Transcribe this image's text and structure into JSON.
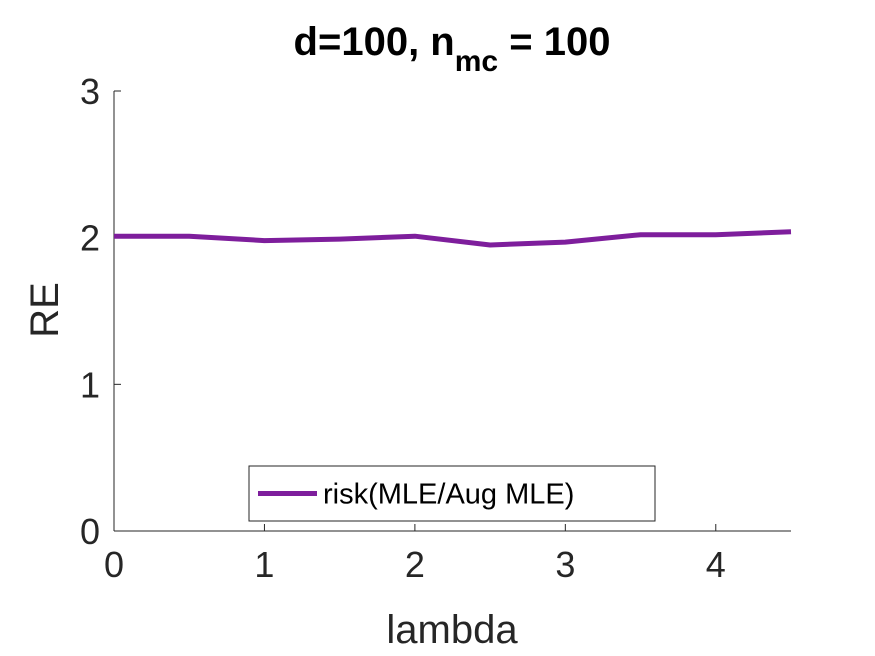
{
  "chart_data": {
    "type": "line",
    "title": {
      "prefix": "d=100, n",
      "subscript": "mc",
      "suffix": " = 100"
    },
    "xlabel": "lambda",
    "ylabel": "RE",
    "xlim": [
      0,
      4.5
    ],
    "ylim": [
      0,
      3
    ],
    "xticks": [
      0,
      1,
      2,
      3,
      4
    ],
    "yticks": [
      0,
      1,
      2,
      3
    ],
    "grid": false,
    "legend_position": "bottom-center",
    "series": [
      {
        "name": "risk(MLE/Aug MLE)",
        "color": "#7E1E9C",
        "x": [
          0,
          0.5,
          1,
          1.5,
          2,
          2.5,
          3,
          3.5,
          4,
          4.5
        ],
        "y": [
          2.01,
          2.01,
          1.98,
          1.99,
          2.01,
          1.95,
          1.97,
          2.02,
          2.02,
          2.04
        ]
      }
    ]
  }
}
